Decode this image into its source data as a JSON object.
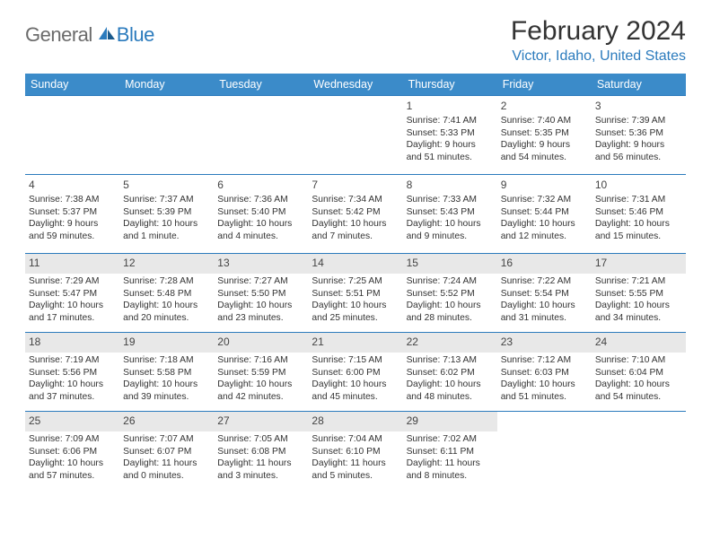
{
  "logo": {
    "text1": "General",
    "text2": "Blue"
  },
  "title": "February 2024",
  "location": "Victor, Idaho, United States",
  "colors": {
    "header_bg": "#3b8bc9",
    "accent": "#2b7bbd",
    "shade": "#e8e8e8",
    "logo_gray": "#6b6b6b"
  },
  "day_headers": [
    "Sunday",
    "Monday",
    "Tuesday",
    "Wednesday",
    "Thursday",
    "Friday",
    "Saturday"
  ],
  "weeks": [
    [
      {
        "n": "",
        "sr": "",
        "ss": "",
        "dl": ""
      },
      {
        "n": "",
        "sr": "",
        "ss": "",
        "dl": ""
      },
      {
        "n": "",
        "sr": "",
        "ss": "",
        "dl": ""
      },
      {
        "n": "",
        "sr": "",
        "ss": "",
        "dl": ""
      },
      {
        "n": "1",
        "sr": "Sunrise: 7:41 AM",
        "ss": "Sunset: 5:33 PM",
        "dl": "Daylight: 9 hours and 51 minutes."
      },
      {
        "n": "2",
        "sr": "Sunrise: 7:40 AM",
        "ss": "Sunset: 5:35 PM",
        "dl": "Daylight: 9 hours and 54 minutes."
      },
      {
        "n": "3",
        "sr": "Sunrise: 7:39 AM",
        "ss": "Sunset: 5:36 PM",
        "dl": "Daylight: 9 hours and 56 minutes."
      }
    ],
    [
      {
        "n": "4",
        "sr": "Sunrise: 7:38 AM",
        "ss": "Sunset: 5:37 PM",
        "dl": "Daylight: 9 hours and 59 minutes."
      },
      {
        "n": "5",
        "sr": "Sunrise: 7:37 AM",
        "ss": "Sunset: 5:39 PM",
        "dl": "Daylight: 10 hours and 1 minute."
      },
      {
        "n": "6",
        "sr": "Sunrise: 7:36 AM",
        "ss": "Sunset: 5:40 PM",
        "dl": "Daylight: 10 hours and 4 minutes."
      },
      {
        "n": "7",
        "sr": "Sunrise: 7:34 AM",
        "ss": "Sunset: 5:42 PM",
        "dl": "Daylight: 10 hours and 7 minutes."
      },
      {
        "n": "8",
        "sr": "Sunrise: 7:33 AM",
        "ss": "Sunset: 5:43 PM",
        "dl": "Daylight: 10 hours and 9 minutes."
      },
      {
        "n": "9",
        "sr": "Sunrise: 7:32 AM",
        "ss": "Sunset: 5:44 PM",
        "dl": "Daylight: 10 hours and 12 minutes."
      },
      {
        "n": "10",
        "sr": "Sunrise: 7:31 AM",
        "ss": "Sunset: 5:46 PM",
        "dl": "Daylight: 10 hours and 15 minutes."
      }
    ],
    [
      {
        "n": "11",
        "sr": "Sunrise: 7:29 AM",
        "ss": "Sunset: 5:47 PM",
        "dl": "Daylight: 10 hours and 17 minutes.",
        "shaded": true
      },
      {
        "n": "12",
        "sr": "Sunrise: 7:28 AM",
        "ss": "Sunset: 5:48 PM",
        "dl": "Daylight: 10 hours and 20 minutes.",
        "shaded": true
      },
      {
        "n": "13",
        "sr": "Sunrise: 7:27 AM",
        "ss": "Sunset: 5:50 PM",
        "dl": "Daylight: 10 hours and 23 minutes.",
        "shaded": true
      },
      {
        "n": "14",
        "sr": "Sunrise: 7:25 AM",
        "ss": "Sunset: 5:51 PM",
        "dl": "Daylight: 10 hours and 25 minutes.",
        "shaded": true
      },
      {
        "n": "15",
        "sr": "Sunrise: 7:24 AM",
        "ss": "Sunset: 5:52 PM",
        "dl": "Daylight: 10 hours and 28 minutes.",
        "shaded": true
      },
      {
        "n": "16",
        "sr": "Sunrise: 7:22 AM",
        "ss": "Sunset: 5:54 PM",
        "dl": "Daylight: 10 hours and 31 minutes.",
        "shaded": true
      },
      {
        "n": "17",
        "sr": "Sunrise: 7:21 AM",
        "ss": "Sunset: 5:55 PM",
        "dl": "Daylight: 10 hours and 34 minutes.",
        "shaded": true
      }
    ],
    [
      {
        "n": "18",
        "sr": "Sunrise: 7:19 AM",
        "ss": "Sunset: 5:56 PM",
        "dl": "Daylight: 10 hours and 37 minutes.",
        "shaded": true
      },
      {
        "n": "19",
        "sr": "Sunrise: 7:18 AM",
        "ss": "Sunset: 5:58 PM",
        "dl": "Daylight: 10 hours and 39 minutes.",
        "shaded": true
      },
      {
        "n": "20",
        "sr": "Sunrise: 7:16 AM",
        "ss": "Sunset: 5:59 PM",
        "dl": "Daylight: 10 hours and 42 minutes.",
        "shaded": true
      },
      {
        "n": "21",
        "sr": "Sunrise: 7:15 AM",
        "ss": "Sunset: 6:00 PM",
        "dl": "Daylight: 10 hours and 45 minutes.",
        "shaded": true
      },
      {
        "n": "22",
        "sr": "Sunrise: 7:13 AM",
        "ss": "Sunset: 6:02 PM",
        "dl": "Daylight: 10 hours and 48 minutes.",
        "shaded": true
      },
      {
        "n": "23",
        "sr": "Sunrise: 7:12 AM",
        "ss": "Sunset: 6:03 PM",
        "dl": "Daylight: 10 hours and 51 minutes.",
        "shaded": true
      },
      {
        "n": "24",
        "sr": "Sunrise: 7:10 AM",
        "ss": "Sunset: 6:04 PM",
        "dl": "Daylight: 10 hours and 54 minutes.",
        "shaded": true
      }
    ],
    [
      {
        "n": "25",
        "sr": "Sunrise: 7:09 AM",
        "ss": "Sunset: 6:06 PM",
        "dl": "Daylight: 10 hours and 57 minutes.",
        "shaded": true
      },
      {
        "n": "26",
        "sr": "Sunrise: 7:07 AM",
        "ss": "Sunset: 6:07 PM",
        "dl": "Daylight: 11 hours and 0 minutes.",
        "shaded": true
      },
      {
        "n": "27",
        "sr": "Sunrise: 7:05 AM",
        "ss": "Sunset: 6:08 PM",
        "dl": "Daylight: 11 hours and 3 minutes.",
        "shaded": true
      },
      {
        "n": "28",
        "sr": "Sunrise: 7:04 AM",
        "ss": "Sunset: 6:10 PM",
        "dl": "Daylight: 11 hours and 5 minutes.",
        "shaded": true
      },
      {
        "n": "29",
        "sr": "Sunrise: 7:02 AM",
        "ss": "Sunset: 6:11 PM",
        "dl": "Daylight: 11 hours and 8 minutes.",
        "shaded": true
      },
      {
        "n": "",
        "sr": "",
        "ss": "",
        "dl": ""
      },
      {
        "n": "",
        "sr": "",
        "ss": "",
        "dl": ""
      }
    ]
  ]
}
